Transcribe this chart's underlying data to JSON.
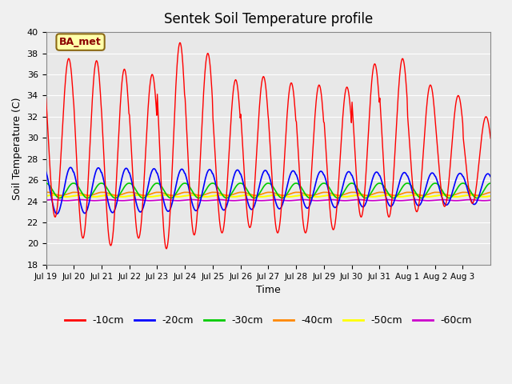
{
  "title": "Sentek Soil Temperature profile",
  "xlabel": "Time",
  "ylabel": "Soil Temperature (C)",
  "ylim": [
    18,
    40
  ],
  "yticks": [
    18,
    20,
    22,
    24,
    26,
    28,
    30,
    32,
    34,
    36,
    38,
    40
  ],
  "annotation_text": "BA_met",
  "colors": {
    "-10cm": "#ff0000",
    "-20cm": "#0000ff",
    "-30cm": "#00cc00",
    "-40cm": "#ff8800",
    "-50cm": "#ffff00",
    "-60cm": "#cc00cc"
  },
  "legend_labels": [
    "-10cm",
    "-20cm",
    "-30cm",
    "-40cm",
    "-50cm",
    "-60cm"
  ],
  "xtick_labels": [
    "Jul 19",
    "Jul 20",
    "Jul 21",
    "Jul 22",
    "Jul 23",
    "Jul 24",
    "Jul 25",
    "Jul 26",
    "Jul 27",
    "Jul 28",
    "Jul 29",
    "Jul 30",
    "Jul 31",
    "Aug 1",
    "Aug 2",
    "Aug 3"
  ],
  "n_days": 16,
  "background_color": "#e8e8e8",
  "axes_facecolor": "#e8e8e8"
}
